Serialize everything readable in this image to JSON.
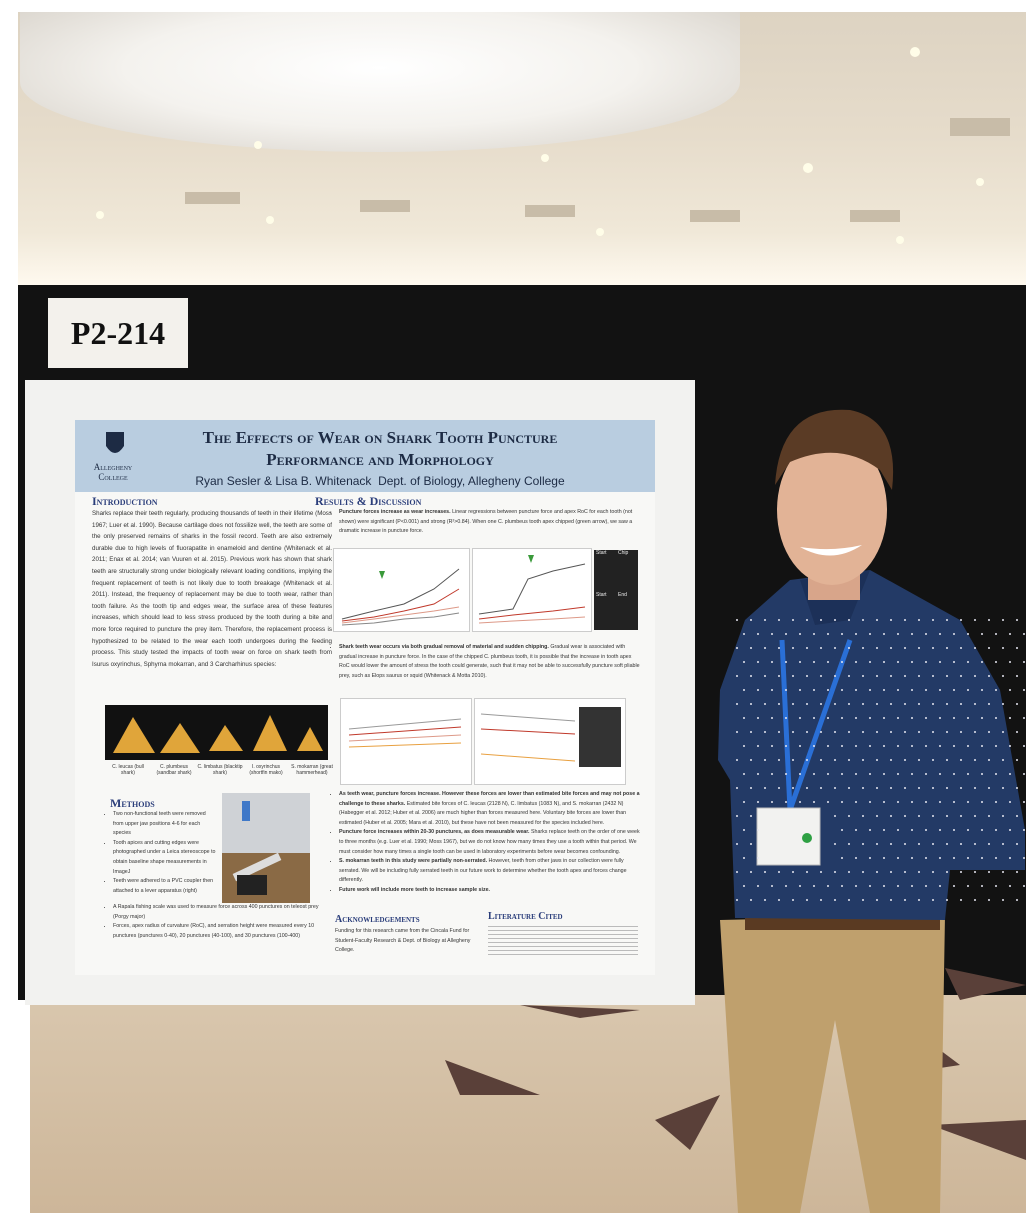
{
  "sign": "P2-214",
  "poster": {
    "logo": "Allegheny College",
    "title_line1": "The Effects of Wear on Shark Tooth Puncture",
    "title_line2": "Performance and Morphology",
    "authors": "Ryan Sesler & Lisa B. Whitenack  Dept. of Biology, Allegheny College",
    "introduction": {
      "heading": "Introduction",
      "text": "Sharks replace their teeth regularly, producing thousands of teeth in their lifetime (Moss 1967; Luer et al. 1990). Because cartilage does not fossilize well, the teeth are some of the only preserved remains of sharks in the fossil record. Teeth are also extremely durable due to high levels of fluorapatite in enameloid and dentine (Whitenack et al. 2011; Enax et al. 2014; van Vuuren et al. 2015). Previous work has shown that shark teeth are structurally strong under biologically relevant loading conditions, implying the frequent replacement of teeth is not likely due to tooth breakage (Whitenack et al. 2011). Instead, the frequency of replacement may be due to tooth wear, rather than tooth failure. As the tooth tip and edges wear, the surface area of these features increases, which should lead to less stress produced by the tooth during a bite and more force required to puncture the prey item. Therefore, the replacement process is hypothesized to be related to the wear each tooth undergoes during the feeding process. This study tested the impacts of tooth wear on force on shark teeth from Isurus oxyrinchus, Sphyrna mokarran, and 3 Carcharhinus species:"
    },
    "species": [
      "C. leucas (bull shark)",
      "C. plumbeus (sandbar shark)",
      "C. limbatus (blacktip shark)",
      "I. oxyrinchus (shortfin mako)",
      "S. mokarran (great hammerhead)"
    ],
    "methods": {
      "heading": "Methods",
      "bullets": [
        "Two non-functional teeth were removed from upper jaw positions 4-6 for each species",
        "Tooth apices and cutting edges were photographed under a Leica stereoscope to obtain baseline shape measurements in ImageJ",
        "Teeth were adhered to a PVC coupler then attached to a lever apparatus (right)",
        "A Rapala fishing scale was used to measure force across 400 punctures on teleost prey (Porgy major)",
        "Forces, apex radius of curvature (RoC), and serration height were measured every 10 punctures (punctures 0-40), 20 punctures (40-100), and 30 punctures (100-400)"
      ]
    },
    "results": {
      "heading": "Results & Discussion",
      "bullets": [
        {
          "lead": "Puncture forces increase as wear increases.",
          "text": "Linear regressions between puncture force and apex RoC for each tooth (not shown) were significant (P<0.001) and strong (R²>0.84). When one C. plumbeus tooth apex chipped (green arrow), we saw a dramatic increase in puncture force."
        },
        {
          "lead": "Shark teeth wear occurs via both gradual removal of material and sudden chipping.",
          "text": "Gradual wear is associated with gradual increase in puncture force. In the case of the chipped C. plumbeus tooth, it is possible that the increase in tooth apex RoC would lower the amount of stress the tooth could generate, such that it may not be able to successfully puncture soft pliable prey, such as Elops saurus or squid (Whitenack & Motta 2010)."
        },
        {
          "lead": "As teeth wear, puncture forces increase. However these forces are lower than estimated bite forces and may not pose a challenge to these sharks.",
          "text": "Estimated bite forces of C. leucas (2128 N), C. limbatus (1083 N), and S. mokarran (2432 N) (Habegger et al. 2012; Huber et al. 2006) are much higher than forces measured here. Voluntary bite forces are lower than estimated (Huber et al. 2005; Mara et al. 2010), but these have not been measured for the species included here."
        },
        {
          "lead": "Puncture force increases within 20-30 punctures, as does measurable wear.",
          "text": "Sharks replace teeth on the order of one week to three months (e.g. Luer et al. 1990; Moss 1967), but we do not know how many times they use a tooth within that period. We must consider how many times a single tooth can be used in laboratory experiments before wear becomes confounding."
        },
        {
          "lead": "S. mokarran teeth in this study were partially non-serrated.",
          "text": "However, teeth from other jaws in our collection were fully serrated. We will be including fully serrated teeth in our future work to determine whether the tooth apex and forces change differently."
        },
        {
          "lead": "Future work will include more teeth to increase sample size.",
          "text": ""
        }
      ],
      "photo_labels": [
        "Start",
        "Chip",
        "Start",
        "End"
      ]
    },
    "acknowledgements": {
      "heading": "Acknowledgements",
      "text": "Funding for this research came from the Cincala Fund for Student-Faculty Research & Dept. of Biology at Allegheny College."
    },
    "literature": {
      "heading": "Literature Cited"
    }
  }
}
